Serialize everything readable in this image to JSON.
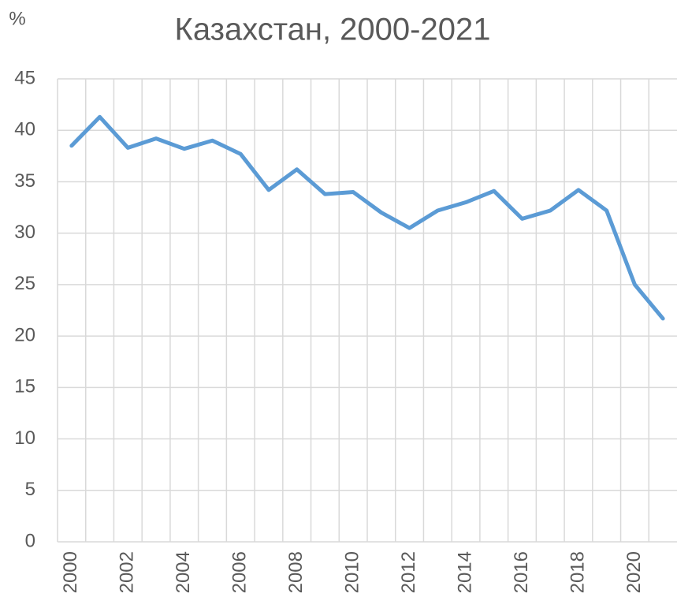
{
  "chart_data": {
    "type": "line",
    "title": "Казахстан, 2000-2021",
    "y_label": "%",
    "categories": [
      "2000",
      null,
      "2002",
      null,
      "2004",
      null,
      "2006",
      null,
      "2008",
      null,
      "2010",
      null,
      "2012",
      null,
      "2014",
      null,
      "2016",
      null,
      "2018",
      null,
      "2020",
      null
    ],
    "series": [
      {
        "name": "Казахстан",
        "color": "#5b9bd5",
        "values": [
          38.5,
          41.3,
          38.3,
          39.2,
          38.2,
          39.0,
          37.7,
          34.2,
          36.2,
          33.8,
          34.0,
          32.0,
          30.5,
          32.2,
          33.0,
          34.1,
          31.4,
          32.2,
          34.2,
          32.2,
          25.0,
          21.7
        ]
      }
    ],
    "ylim": [
      0,
      45
    ],
    "yticks": [
      0,
      5,
      10,
      15,
      20,
      25,
      30,
      35,
      40,
      45
    ],
    "grid": true
  }
}
